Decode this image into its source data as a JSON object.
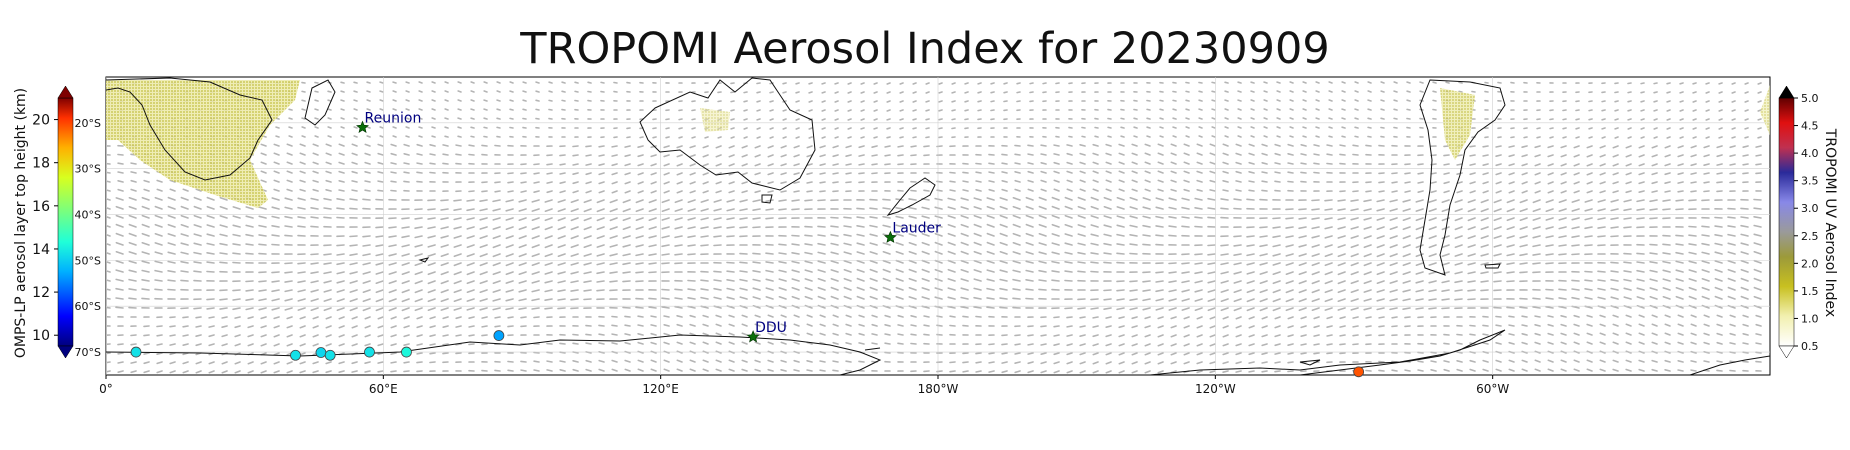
{
  "title": "TROPOMI Aerosol Index for 20230909",
  "chart_data": {
    "type": "scatter",
    "title": "TROPOMI Aerosol Index for 20230909",
    "map_projection": "plate carree, Southern Hemisphere band",
    "lon_range": [
      0,
      360
    ],
    "lat_range": [
      -75,
      -10
    ],
    "x_ticks": [
      "0°",
      "60°E",
      "120°E",
      "180°W",
      "120°W",
      "60°W"
    ],
    "x_tick_values": [
      0,
      60,
      120,
      180,
      240,
      300
    ],
    "lat_ticks": [
      "20°S",
      "30°S",
      "40°S",
      "50°S",
      "60°S",
      "70°S"
    ],
    "lat_tick_values": [
      -20,
      -30,
      -40,
      -50,
      -60,
      -70
    ],
    "stations": [
      {
        "name": "Reunion",
        "lon": 55.5,
        "lat": -21
      },
      {
        "name": "Lauder",
        "lon": 169.7,
        "lat": -45
      },
      {
        "name": "DDU",
        "lon": 140,
        "lat": -66.7
      }
    ],
    "omps_points": {
      "label": "OMPS-LP aerosol layer top height (km)",
      "points": [
        {
          "lon": 6.5,
          "lat": -70.0,
          "height": 13.8
        },
        {
          "lon": 41.0,
          "lat": -70.7,
          "height": 13.8
        },
        {
          "lon": 46.5,
          "lat": -70.1,
          "height": 13.6
        },
        {
          "lon": 48.5,
          "lat": -70.7,
          "height": 13.8
        },
        {
          "lon": 57.0,
          "lat": -70.0,
          "height": 13.8
        },
        {
          "lon": 65.0,
          "lat": -70.0,
          "height": 14.2
        },
        {
          "lon": 85.0,
          "lat": -66.4,
          "height": 12.8
        },
        {
          "lon": 271.0,
          "lat": -74.3,
          "height": 19.7
        }
      ]
    },
    "left_colorbar": {
      "label": "OMPS-LP aerosol layer top height (km)",
      "ticks": [
        10,
        12,
        14,
        16,
        18,
        20
      ],
      "range": [
        9.5,
        21
      ],
      "extend": "both"
    },
    "right_colorbar": {
      "label": "TROPOMI UV Aerosol Index",
      "ticks": [
        0.5,
        1.0,
        1.5,
        2.0,
        2.5,
        3.0,
        3.5,
        4.0,
        4.5,
        5.0
      ],
      "tick_labels": [
        "0.5",
        "1.0",
        "1.5",
        "2.0",
        "2.5",
        "3.0",
        "3.5",
        "4.0",
        "4.5",
        "5.0"
      ],
      "range": [
        0.5,
        5.0
      ],
      "extend": "both"
    },
    "wind_vectors": "grey arrows, predominantly westerly"
  }
}
